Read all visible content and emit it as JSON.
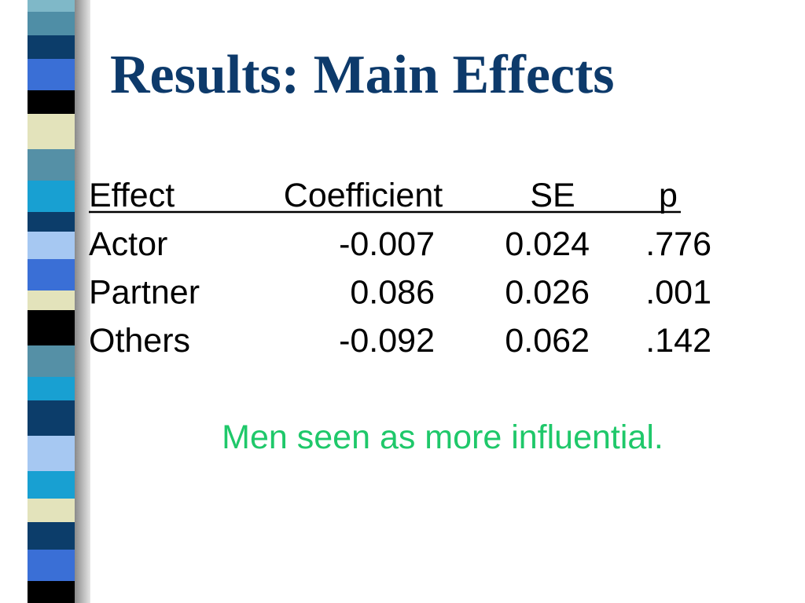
{
  "title": "Results: Main Effects",
  "table": {
    "headers": [
      "Effect",
      "Coefficient",
      "SE",
      "p"
    ],
    "rows": [
      [
        "Actor",
        "-0.007",
        "0.024",
        ".776"
      ],
      [
        "Partner",
        "0.086",
        "0.026",
        ".001"
      ],
      [
        "Others",
        "-0.092",
        "0.062",
        ".142"
      ]
    ]
  },
  "note": "Men seen as more influential."
}
